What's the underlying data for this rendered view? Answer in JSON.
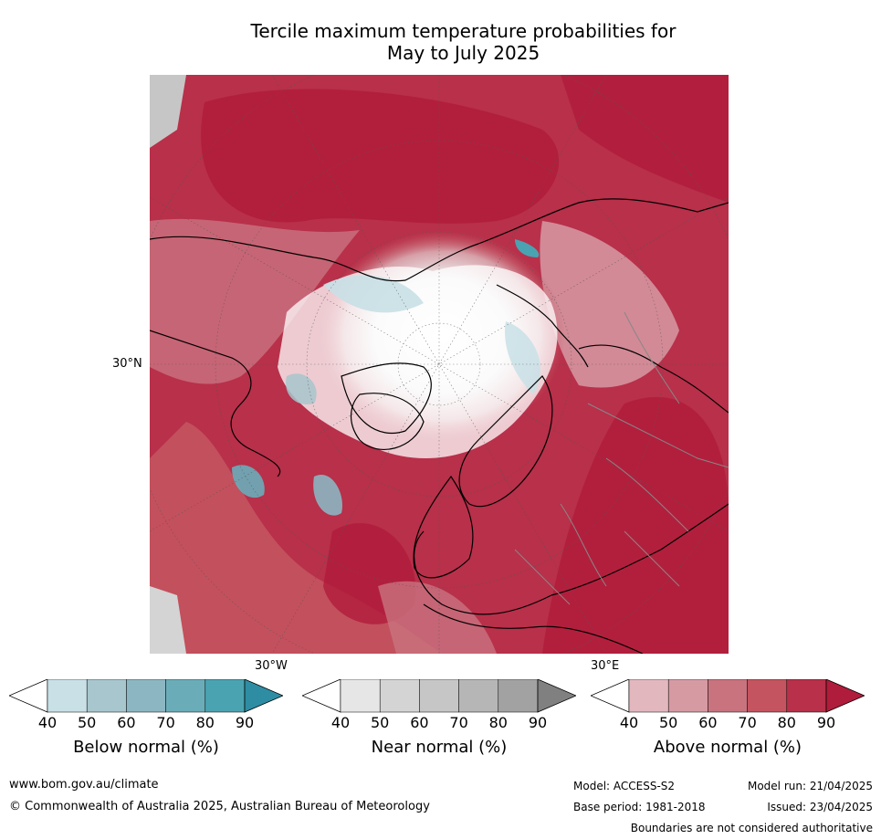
{
  "title_line1": "Tercile maximum temperature probabilities for",
  "title_line2": "May to July 2025",
  "map": {
    "lat_label": "30°N",
    "lon_labels": [
      "30°W",
      "30°E"
    ]
  },
  "colorbars": [
    {
      "title": "Below normal (%)",
      "ticks": [
        "40",
        "50",
        "60",
        "70",
        "80",
        "90"
      ],
      "colors": [
        "#ffffff",
        "#c8e0e6",
        "#a7c6cd",
        "#8cb6c2",
        "#6aadb9",
        "#4aa3b1",
        "#2e8da3"
      ]
    },
    {
      "title": "Near normal (%)",
      "ticks": [
        "40",
        "50",
        "60",
        "70",
        "80",
        "90"
      ],
      "colors": [
        "#ffffff",
        "#e6e6e6",
        "#d4d4d4",
        "#c6c6c6",
        "#b6b6b6",
        "#a2a2a2",
        "#808080"
      ]
    },
    {
      "title": "Above normal (%)",
      "ticks": [
        "40",
        "50",
        "60",
        "70",
        "80",
        "90"
      ],
      "colors": [
        "#ffffff",
        "#e2b7bd",
        "#d69aa3",
        "#c9737f",
        "#c4545f",
        "#b8304a",
        "#b01c3b"
      ]
    }
  ],
  "footer": {
    "url": "www.bom.gov.au/climate",
    "copyright": "© Commonwealth of Australia 2025, Australian Bureau of Meteorology",
    "model": "Model: ACCESS-S2",
    "model_run": "Model run: 21/04/2025",
    "base_period": "Base period: 1981-2018",
    "issued": "Issued: 23/04/2025",
    "disclaimer": "Boundaries are not considered authoritative"
  }
}
